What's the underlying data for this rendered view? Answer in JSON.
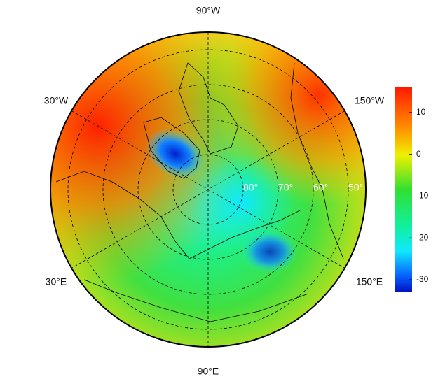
{
  "map": {
    "meridian_labels": {
      "top": "90°W",
      "upper_left": "30°W",
      "upper_right": "150°W",
      "lower_left": "30°E",
      "lower_right": "150°E",
      "bottom": "90°E"
    },
    "latitude_circles": [
      {
        "value": 80,
        "label": "80°"
      },
      {
        "value": 70,
        "label": "70°"
      },
      {
        "value": 60,
        "label": "60°"
      },
      {
        "value": 50,
        "label": "50°"
      }
    ],
    "colorbar": {
      "lim": [
        -33,
        16
      ],
      "ticks": [
        10,
        0,
        -10,
        -20,
        -30
      ]
    }
  }
}
